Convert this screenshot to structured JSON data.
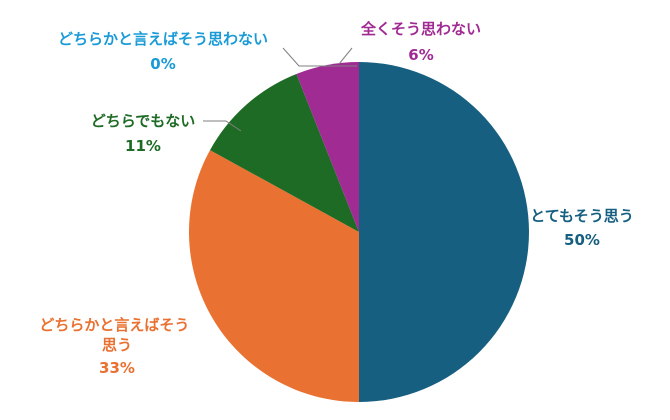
{
  "chart_data": {
    "type": "pie",
    "slices": [
      {
        "label": "とてもそう思う",
        "value": 50,
        "value_label": "50%",
        "color": "#175F80"
      },
      {
        "label": "どちらかと言えばそう思う",
        "value": 33,
        "value_label": "33%",
        "color": "#E97132"
      },
      {
        "label": "どちらでもない",
        "value": 11,
        "value_label": "11%",
        "color": "#1E6B25"
      },
      {
        "label": "どちらかと言えばそう思わない",
        "value": 0,
        "value_label": "0%",
        "color": "#1A9BD7"
      },
      {
        "label": "全くそう思わない",
        "value": 6,
        "value_label": "6%",
        "color": "#A02B93"
      }
    ],
    "start_angle_deg": 0,
    "direction": "clockwise",
    "legend": "none",
    "labels": "outside-with-leader-lines"
  }
}
